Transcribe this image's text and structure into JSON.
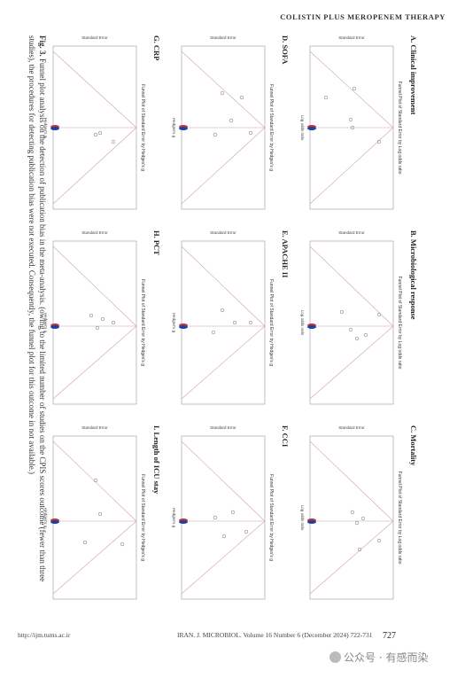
{
  "header": {
    "running_head": "COLISTIN PLUS MEROPENEM THERAPY"
  },
  "figure": {
    "caption_label": "Fig. 3.",
    "caption_text": "Funnel plot analysis on the detection of publication bias in the meta-analysis. (owing to the limited number of studies on the CPIS scores outcome (fewer than three studies), the procedures for detecting publication bias were not executed. Consequently, the funnel plot for this outcome in not available.)",
    "axis_title": "Standard Error",
    "plot_title_or": "Funnel Plot of Standard Error by Log odds ratio",
    "plot_title_hedges": "Funnel Plot of Standard Error by Hedges's g",
    "x_label_or": "Log odds ratio",
    "x_label_hedges": "Hedges's g",
    "panels": [
      {
        "title": "A. Clinical improvement",
        "kind": "or"
      },
      {
        "title": "B. Microbiological response",
        "kind": "or"
      },
      {
        "title": "C. Mortality",
        "kind": "or"
      },
      {
        "title": "D. SOFA",
        "kind": "hedges"
      },
      {
        "title": "E. APACHE II",
        "kind": "hedges"
      },
      {
        "title": "F. CCI",
        "kind": "hedges"
      },
      {
        "title": "G. CRP",
        "kind": "hedges"
      },
      {
        "title": "H. PCT",
        "kind": "hedges"
      },
      {
        "title": "I. Length of ICU stay",
        "kind": "hedges"
      }
    ]
  },
  "footer": {
    "url": "http://ijm.tums.ac.ir",
    "journal": "IRAN. J. MICROBIOL. Volume 16 Number 6 (December 2024) 722-731",
    "page_number": "727"
  },
  "watermark": {
    "text": "公众号 · 有感而染"
  }
}
